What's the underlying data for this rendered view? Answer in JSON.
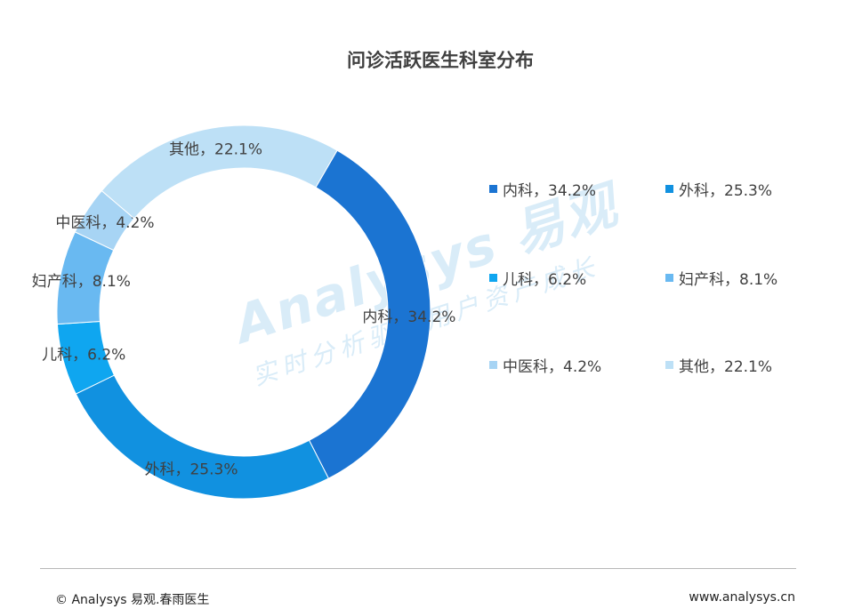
{
  "title": "问诊活跃医生科室分布",
  "watermark": {
    "brand": "Analysys 易观",
    "slogan": "实时分析驱动用户资产成长"
  },
  "footer": {
    "left": "© Analysys 易观.春雨医生",
    "right": "www.analysys.cn"
  },
  "chart_data": {
    "type": "pie",
    "donut": true,
    "title": "问诊活跃医生科室分布",
    "legend_position": "right",
    "slices": [
      {
        "label": "内科",
        "value": 34.2,
        "text": "内科，34.2%",
        "color": "#1b74d2"
      },
      {
        "label": "外科",
        "value": 25.3,
        "text": "外科，25.3%",
        "color": "#1191e0"
      },
      {
        "label": "儿科",
        "value": 6.2,
        "text": "儿科，6.2%",
        "color": "#0fa6f0"
      },
      {
        "label": "妇产科",
        "value": 8.1,
        "text": "妇产科，8.1%",
        "color": "#69b9f1"
      },
      {
        "label": "中医科",
        "value": 4.2,
        "text": "中医科，4.2%",
        "color": "#a7d4f4"
      },
      {
        "label": "其他",
        "value": 22.1,
        "text": "其他，22.1%",
        "color": "#bde0f6"
      }
    ]
  }
}
